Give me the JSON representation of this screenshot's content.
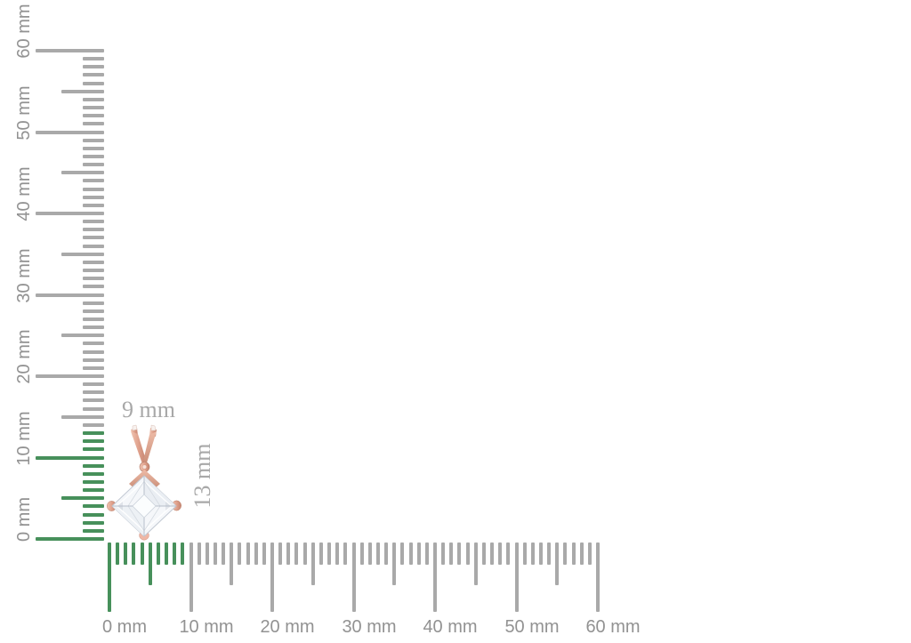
{
  "image": {
    "background": "#ffffff",
    "description": "Rose gold princess-cut diamond solitaire pendant shown to scale against millimeter rulers"
  },
  "rulers": {
    "unit": "mm",
    "tick_color": "#a9a9a9",
    "highlight_color": "#47905b",
    "label_color": "#929292",
    "vertical": {
      "min": 0,
      "max": 60,
      "major_step": 10,
      "medium_step": 5,
      "minor_step": 1,
      "highlight_from": 0,
      "highlight_to": 13,
      "labels": [
        "0 mm",
        "10 mm",
        "20 mm",
        "30 mm",
        "40 mm",
        "50 mm",
        "60 mm"
      ]
    },
    "horizontal": {
      "min": 0,
      "max": 60,
      "major_step": 10,
      "medium_step": 5,
      "minor_step": 1,
      "highlight_from": 0,
      "highlight_to": 9,
      "labels": [
        "0 mm",
        "10 mm",
        "20 mm",
        "30 mm",
        "40 mm",
        "50 mm",
        "60 mm"
      ]
    }
  },
  "dimensions": {
    "width_label": "9 mm",
    "height_label": "13 mm",
    "color": "#a8a8a8"
  },
  "pendant": {
    "item": "Princess-cut diamond solitaire pendant",
    "metal": "rose gold",
    "metal_color": "#e0a28d",
    "metal_highlight": "#f0c4b2",
    "metal_shadow": "#c58470",
    "stone_color": "#f5f7fa",
    "facet_line_color": "#b8bfca"
  }
}
